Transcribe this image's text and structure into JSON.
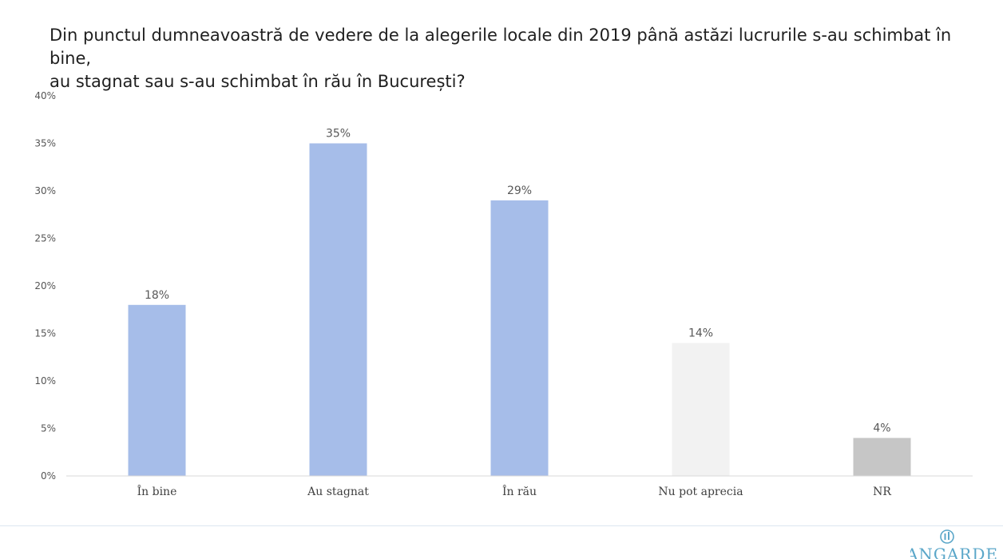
{
  "chart_data": {
    "type": "bar",
    "title": "Din punctul dumneavoastră de vedere  de la alegerile locale din 2019 până astăzi lucrurile s-au schimbat în bine, au stagnat sau s-au schimbat în rău în București?",
    "title_lines": [
      "Din punctul dumneavoastră de vedere  de la alegerile locale din 2019 până astăzi lucrurile s-au schimbat în bine,",
      "au stagnat sau s-au schimbat în rău în București?"
    ],
    "categories": [
      "În bine",
      "Au stagnat",
      "În rău",
      "Nu pot aprecia",
      "NR"
    ],
    "values": [
      18,
      35,
      29,
      14,
      4
    ],
    "data_labels": [
      "18%",
      "35%",
      "29%",
      "14%",
      "4%"
    ],
    "bar_colors": [
      "#a6bde9",
      "#a6bde9",
      "#a6bde9",
      "#f2f2f2",
      "#c6c6c6"
    ],
    "ylim": [
      0,
      40
    ],
    "yticks": [
      0,
      5,
      10,
      15,
      20,
      25,
      30,
      35,
      40
    ],
    "ytick_labels": [
      "0%",
      "5%",
      "10%",
      "15%",
      "20%",
      "25%",
      "30%",
      "35%",
      "40%"
    ],
    "xlabel": "",
    "ylabel": "",
    "grid": false,
    "legend": "none"
  },
  "logo": {
    "text": "AVANGARDE",
    "color": "#5ba7c9"
  },
  "colors": {
    "axis": "#d9d9d9",
    "footer_line": "#dce6f0"
  }
}
